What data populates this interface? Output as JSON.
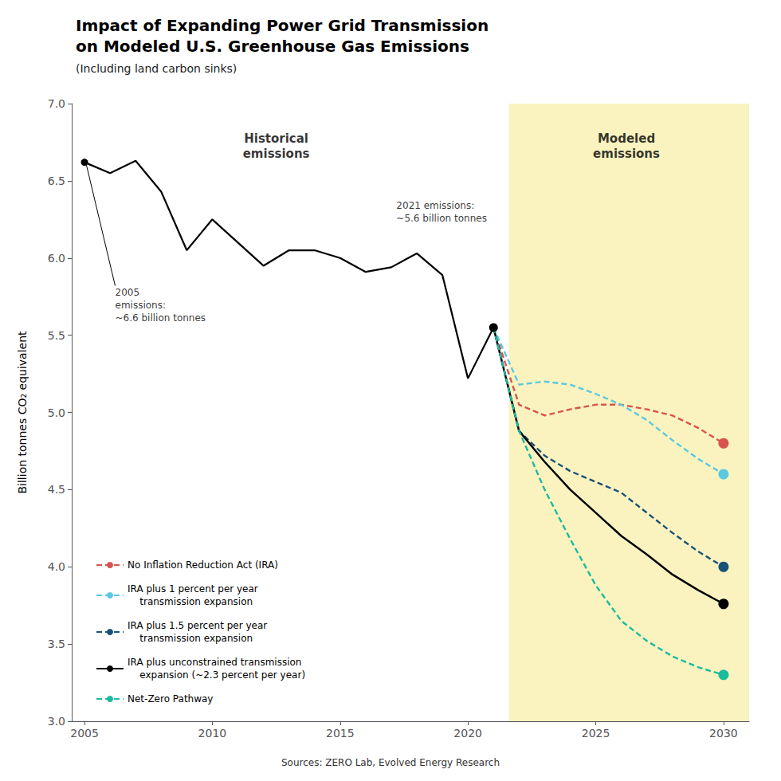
{
  "chart_data": {
    "type": "line",
    "title": "Impact of Expanding Power Grid Transmission\non Modeled U.S. Greenhouse Gas Emissions",
    "subtitle": "(Including land carbon sinks)",
    "ylabel": "Billion tonnes CO₂ equivalent",
    "source": "Sources: ZERO Lab, Evolved Energy Research",
    "xlim": [
      2004.5,
      2031.0
    ],
    "xticks": [
      2005,
      2010,
      2015,
      2020,
      2025,
      2030
    ],
    "ylim": [
      3.0,
      7.0
    ],
    "yticks": [
      {
        "value": 3.0,
        "label": "3.0"
      },
      3.5,
      {
        "value": 4.0,
        "label": "4.0"
      },
      4.5,
      {
        "value": 5.0,
        "label": "5.0"
      },
      5.5,
      {
        "value": 6.0,
        "label": "6.0"
      },
      6.5,
      {
        "value": 7.0,
        "label": "7.0"
      }
    ],
    "grid": false,
    "legend": "lower left",
    "shaded_region": {
      "x": [
        2021.6,
        2031.0
      ],
      "color": "#faf3c0"
    },
    "series": [
      {
        "color": "black",
        "line_style": "solid",
        "x": [
          2005,
          2006,
          2007,
          2008,
          2009,
          2010,
          2011,
          2012,
          2013,
          2014,
          2015,
          2016,
          2017,
          2018,
          2019,
          2020,
          2021
        ],
        "values": [
          6.62,
          6.55,
          6.63,
          6.43,
          6.05,
          6.25,
          6.1,
          5.95,
          6.05,
          6.05,
          6.0,
          5.91,
          5.94,
          6.03,
          5.89,
          5.22,
          5.55
        ]
      },
      {
        "name": "No Inflation Reduction Act (IRA)",
        "color": "#d9534f",
        "line_style": "dashed",
        "x": [
          2021,
          2022,
          2023,
          2024,
          2025,
          2026,
          2027,
          2028,
          2029,
          2030
        ],
        "values": [
          5.55,
          5.05,
          4.98,
          5.02,
          5.05,
          5.05,
          5.02,
          4.98,
          4.9,
          4.8
        ]
      },
      {
        "name": "IRA plus 1 percent per year\n    transmission expansion",
        "color": "#5bc8e0",
        "line_style": "dashed",
        "x": [
          2021,
          2022,
          2023,
          2024,
          2025,
          2026,
          2027,
          2028,
          2029,
          2030
        ],
        "values": [
          5.55,
          5.18,
          5.2,
          5.18,
          5.12,
          5.05,
          4.95,
          4.82,
          4.7,
          4.6
        ]
      },
      {
        "name": "IRA plus 1.5 percent per year\n    transmission expansion",
        "color": "#1a5276",
        "line_style": "dashed",
        "x": [
          2021,
          2022,
          2023,
          2024,
          2025,
          2026,
          2027,
          2028,
          2029,
          2030
        ],
        "values": [
          5.55,
          4.88,
          4.72,
          4.62,
          4.55,
          4.48,
          4.35,
          4.22,
          4.1,
          4.0
        ]
      },
      {
        "name": "IRA plus unconstrained transmission\n    expansion (~2.3 percent per year)",
        "color": "black",
        "line_style": "solid",
        "x": [
          2021,
          2022,
          2023,
          2024,
          2025,
          2026,
          2027,
          2028,
          2029,
          2030
        ],
        "values": [
          5.55,
          4.88,
          4.68,
          4.5,
          4.35,
          4.2,
          4.08,
          3.95,
          3.85,
          3.76
        ]
      },
      {
        "name": "Net-Zero Pathway",
        "color": "#1abc9c",
        "line_style": "dashed",
        "x": [
          2021,
          2022,
          2023,
          2024,
          2025,
          2026,
          2027,
          2028,
          2029,
          2030
        ],
        "values": [
          5.55,
          4.88,
          4.5,
          4.18,
          3.88,
          3.65,
          3.52,
          3.42,
          3.35,
          3.3
        ]
      }
    ],
    "section_labels": [
      {
        "text": "Historical\nemissions",
        "x": 2012.5,
        "y": 6.82
      },
      {
        "text": "Modeled\nemissions",
        "x": 2026.2,
        "y": 6.82
      }
    ],
    "annotations": [
      {
        "text": "2005\nemissions:\n~6.6 billion tonnes",
        "x": 2006.2,
        "y": 5.82,
        "arrow_to": [
          2005.05,
          6.62
        ]
      },
      {
        "text": "2021 emissions:\n~5.6 billion tonnes",
        "x": 2017.2,
        "y": 6.38
      }
    ]
  }
}
